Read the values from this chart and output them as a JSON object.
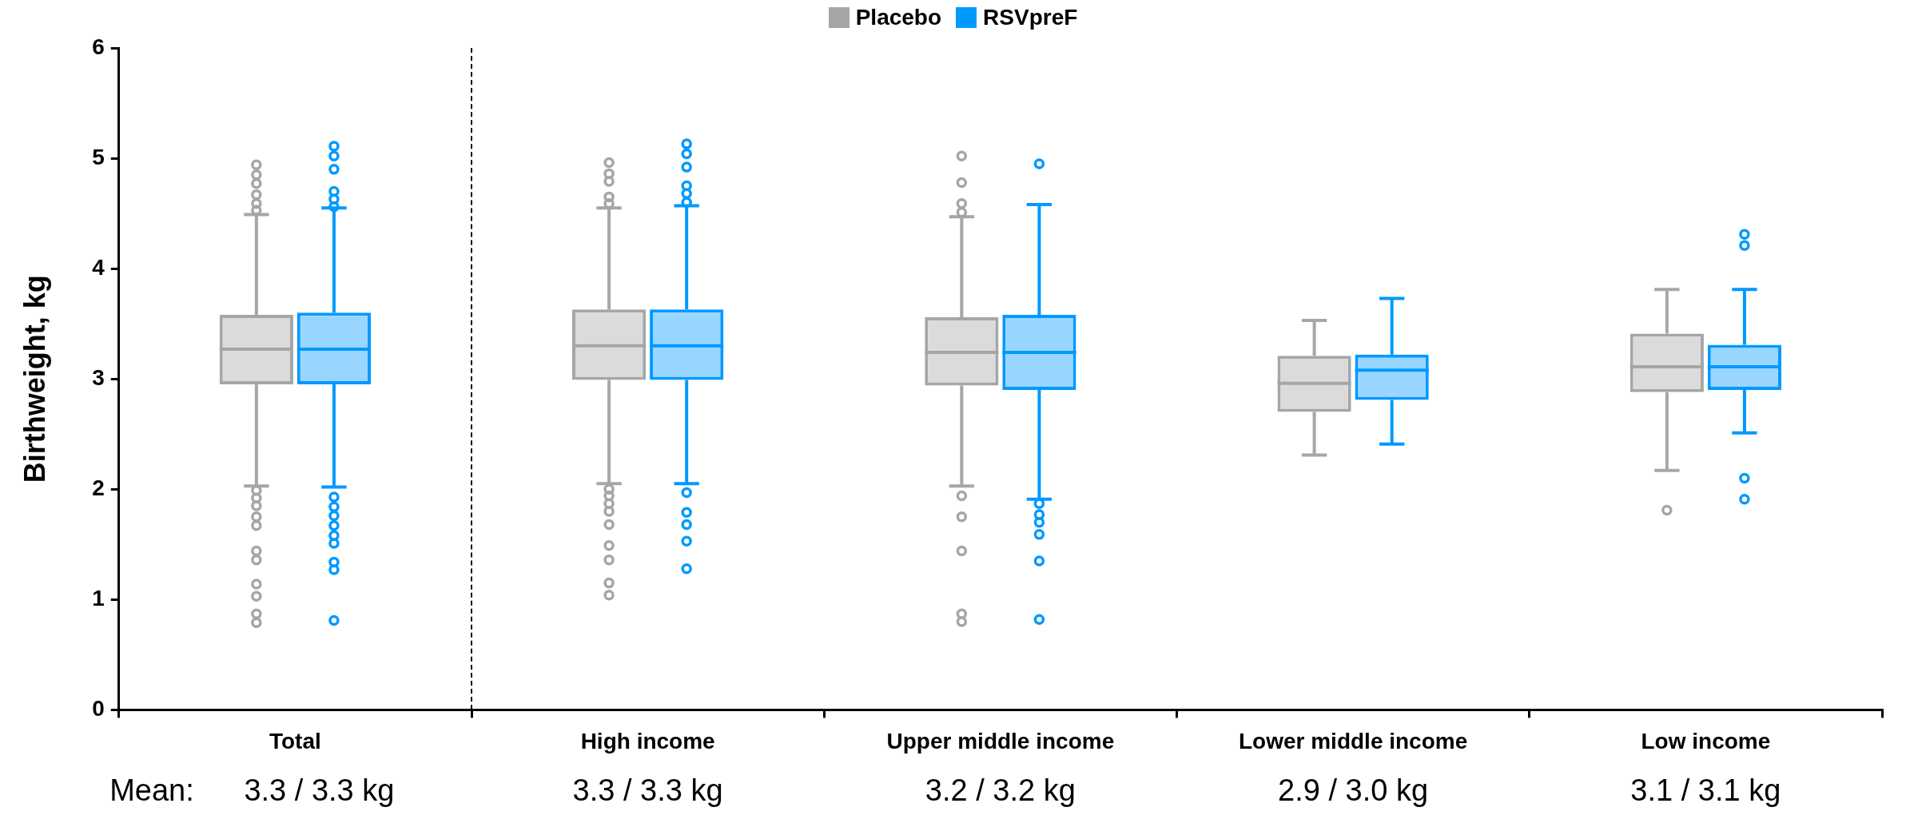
{
  "chart_data": {
    "type": "box",
    "ylabel": "Birthweight, kg",
    "legend": "top",
    "grid": false,
    "categories": [
      "Total",
      "High income",
      "Upper middle income",
      "Lower middle income",
      "Low income"
    ],
    "ylim": [
      0,
      6
    ],
    "yticks": [
      0,
      1,
      2,
      3,
      4,
      5,
      6
    ],
    "annotations": [
      "Mean:",
      "3.3 / 3.3 kg",
      "3.3 / 3.3 kg",
      "3.2 / 3.2 kg",
      "2.9 / 3.0 kg",
      "3.1 / 3.1 kg"
    ],
    "series": [
      {
        "name": "Placebo",
        "color": "#a6a6a6",
        "boxes": [
          {
            "low": 2.03,
            "q1": 2.95,
            "median": 3.27,
            "q3": 3.58,
            "high": 4.49,
            "outliers": [
              4.94,
              4.85,
              4.77,
              4.67,
              4.59,
              4.53,
              1.99,
              1.92,
              1.85,
              1.75,
              1.67,
              1.44,
              1.36,
              1.14,
              1.03,
              0.87,
              0.79
            ]
          },
          {
            "low": 2.05,
            "q1": 2.99,
            "median": 3.3,
            "q3": 3.63,
            "high": 4.55,
            "outliers": [
              4.96,
              4.86,
              4.79,
              4.65,
              4.59,
              2.0,
              1.94,
              1.87,
              1.8,
              1.68,
              1.49,
              1.36,
              1.15,
              1.04
            ]
          },
          {
            "low": 2.03,
            "q1": 2.94,
            "median": 3.24,
            "q3": 3.56,
            "high": 4.47,
            "outliers": [
              5.02,
              4.78,
              4.59,
              4.51,
              1.94,
              1.75,
              1.44,
              0.87,
              0.8
            ]
          },
          {
            "low": 2.31,
            "q1": 2.7,
            "median": 2.96,
            "q3": 3.21,
            "high": 3.53
          },
          {
            "low": 2.17,
            "q1": 2.88,
            "median": 3.11,
            "q3": 3.41,
            "high": 3.81,
            "outliers": [
              1.81
            ]
          }
        ]
      },
      {
        "name": "RSVpreF",
        "color": "#0099ff",
        "boxes": [
          {
            "low": 2.02,
            "q1": 2.95,
            "median": 3.27,
            "q3": 3.6,
            "high": 4.55,
            "outliers": [
              5.11,
              5.02,
              4.9,
              4.7,
              4.63,
              4.56,
              1.93,
              1.84,
              1.76,
              1.67,
              1.58,
              1.51,
              1.34,
              1.27,
              0.81
            ]
          },
          {
            "low": 2.05,
            "q1": 2.99,
            "median": 3.3,
            "q3": 3.63,
            "high": 4.57,
            "outliers": [
              5.13,
              5.04,
              4.92,
              4.75,
              4.68,
              4.6,
              1.97,
              1.79,
              1.68,
              1.53,
              1.28
            ]
          },
          {
            "low": 1.91,
            "q1": 2.9,
            "median": 3.24,
            "q3": 3.58,
            "high": 4.58,
            "outliers": [
              4.95,
              1.87,
              1.77,
              1.7,
              1.59,
              1.35,
              0.82
            ]
          },
          {
            "low": 2.41,
            "q1": 2.81,
            "median": 3.08,
            "q3": 3.22,
            "high": 3.73
          },
          {
            "low": 2.51,
            "q1": 2.9,
            "median": 3.11,
            "q3": 3.31,
            "high": 3.81,
            "outliers": [
              4.31,
              4.21,
              2.1,
              1.91
            ]
          }
        ]
      }
    ]
  }
}
